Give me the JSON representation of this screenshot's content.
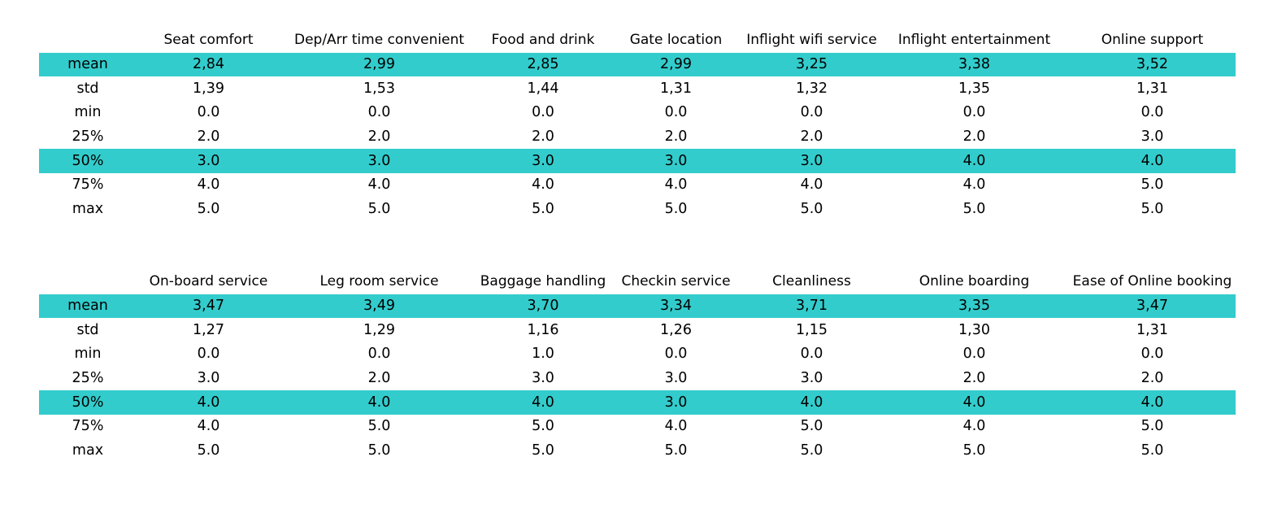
{
  "highlight_color": "#33cccc",
  "chart_data": [
    {
      "type": "table",
      "columns": [
        "",
        "Seat comfort",
        "Dep/Arr time convenient",
        "Food and drink",
        "Gate location",
        "Inflight wifi service",
        "Inflight entertainment",
        "Online support"
      ],
      "rows": [
        {
          "label": "mean",
          "values": [
            "2,84",
            "2,99",
            "2,85",
            "2,99",
            "3,25",
            "3,38",
            "3,52"
          ],
          "highlight": true
        },
        {
          "label": "std",
          "values": [
            "1,39",
            "1,53",
            "1,44",
            "1,31",
            "1,32",
            "1,35",
            "1,31"
          ],
          "highlight": false
        },
        {
          "label": "min",
          "values": [
            "0.0",
            "0.0",
            "0.0",
            "0.0",
            "0.0",
            "0.0",
            "0.0"
          ],
          "highlight": false
        },
        {
          "label": "25%",
          "values": [
            "2.0",
            "2.0",
            "2.0",
            "2.0",
            "2.0",
            "2.0",
            "3.0"
          ],
          "highlight": false
        },
        {
          "label": "50%",
          "values": [
            "3.0",
            "3.0",
            "3.0",
            "3.0",
            "3.0",
            "4.0",
            "4.0"
          ],
          "highlight": true
        },
        {
          "label": "75%",
          "values": [
            "4.0",
            "4.0",
            "4.0",
            "4.0",
            "4.0",
            "4.0",
            "5.0"
          ],
          "highlight": false
        },
        {
          "label": "max",
          "values": [
            "5.0",
            "5.0",
            "5.0",
            "5.0",
            "5.0",
            "5.0",
            "5.0"
          ],
          "highlight": false
        }
      ]
    },
    {
      "type": "table",
      "columns": [
        "",
        "On-board service",
        "Leg room service",
        "Baggage handling",
        "Checkin service",
        "Cleanliness",
        "Online boarding",
        "Ease of Online booking"
      ],
      "rows": [
        {
          "label": "mean",
          "values": [
            "3,47",
            "3,49",
            "3,70",
            "3,34",
            "3,71",
            "3,35",
            "3,47"
          ],
          "highlight": true
        },
        {
          "label": "std",
          "values": [
            "1,27",
            "1,29",
            "1,16",
            "1,26",
            "1,15",
            "1,30",
            "1,31"
          ],
          "highlight": false
        },
        {
          "label": "min",
          "values": [
            "0.0",
            "0.0",
            "1.0",
            "0.0",
            "0.0",
            "0.0",
            "0.0"
          ],
          "highlight": false
        },
        {
          "label": "25%",
          "values": [
            "3.0",
            "2.0",
            "3.0",
            "3.0",
            "3.0",
            "2.0",
            "2.0"
          ],
          "highlight": false
        },
        {
          "label": "50%",
          "values": [
            "4.0",
            "4.0",
            "4.0",
            "3.0",
            "4.0",
            "4.0",
            "4.0"
          ],
          "highlight": true
        },
        {
          "label": "75%",
          "values": [
            "4.0",
            "5.0",
            "5.0",
            "4.0",
            "5.0",
            "4.0",
            "5.0"
          ],
          "highlight": false
        },
        {
          "label": "max",
          "values": [
            "5.0",
            "5.0",
            "5.0",
            "5.0",
            "5.0",
            "5.0",
            "5.0"
          ],
          "highlight": false
        }
      ]
    }
  ]
}
